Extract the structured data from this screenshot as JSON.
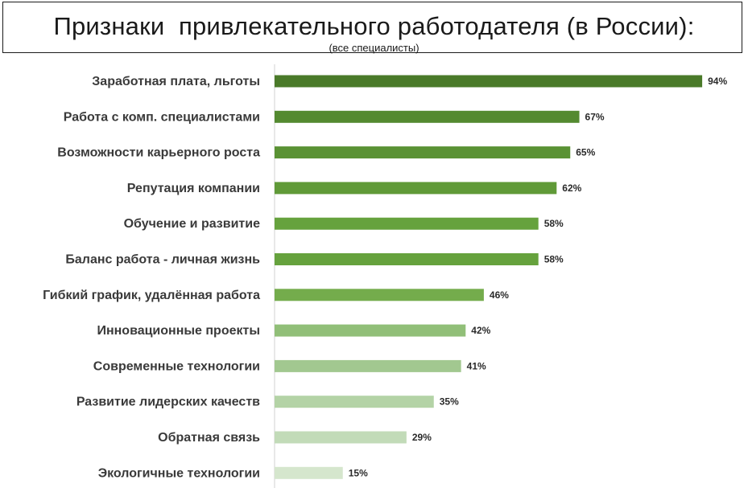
{
  "header": {
    "title": "Признаки  привлекательного работодателя (в России):",
    "subtitle": "(все специалисты)"
  },
  "chart_data": {
    "type": "bar",
    "orientation": "horizontal",
    "title": "Признаки  привлекательного работодателя (в России):",
    "subtitle": "(все специалисты)",
    "xlabel": "",
    "ylabel": "",
    "xlim": [
      0,
      100
    ],
    "grid": false,
    "legend": "none",
    "value_suffix": "%",
    "categories": [
      "Заработная плата, льготы",
      "Работа с комп. специалистами",
      "Возможности карьерного роста",
      "Репутация компании",
      "Обучение и развитие",
      "Баланс работа - личная жизнь",
      "Гибкий график, удалённая работа",
      "Инновационные проекты",
      "Современные технологии",
      "Развитие лидерских качеств",
      "Обратная связь",
      "Экологичные технологии"
    ],
    "values": [
      94,
      67,
      65,
      62,
      58,
      58,
      46,
      42,
      41,
      35,
      29,
      15
    ],
    "value_labels": [
      "94%",
      "67%",
      "65%",
      "62%",
      "58%",
      "58%",
      "46%",
      "42%",
      "41%",
      "35%",
      "29%",
      "15%"
    ],
    "colors": [
      "#4a7a29",
      "#548a30",
      "#5a9234",
      "#609a38",
      "#66a23d",
      "#66a23d",
      "#74ac4c",
      "#91bf78",
      "#a2c890",
      "#b4d3a6",
      "#c2dbb8",
      "#d5e6cd"
    ],
    "axis_color": "#d0d0d0"
  }
}
